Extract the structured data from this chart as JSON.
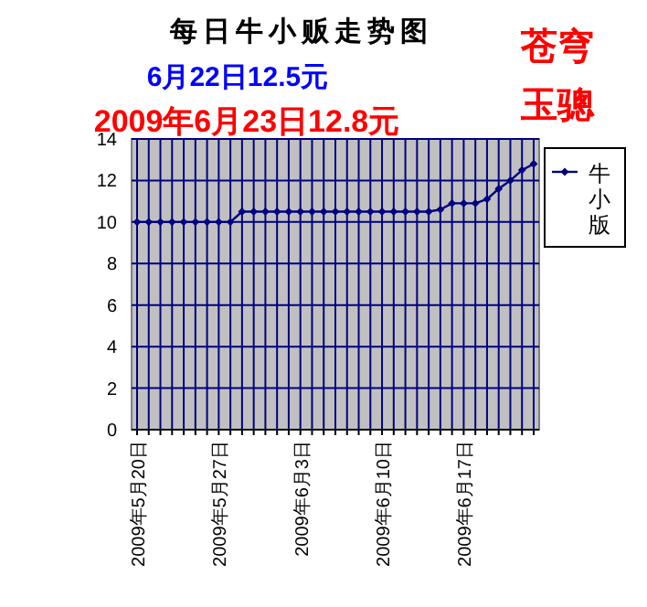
{
  "chart_data": {
    "type": "line",
    "title": "每日牛小贩走势图",
    "subtitle": "6月22日12.5元",
    "annotations": [
      "2009年6月23日12.8元",
      "苍穹",
      "玉骢"
    ],
    "categories": [
      "2009年5月20日",
      null,
      null,
      null,
      null,
      null,
      null,
      "2009年5月27日",
      null,
      null,
      null,
      null,
      null,
      null,
      "2009年6月3日",
      null,
      null,
      null,
      null,
      null,
      null,
      "2009年6月10日",
      null,
      null,
      null,
      null,
      null,
      null,
      "2009年6月17日",
      null,
      null,
      null,
      null,
      null,
      null
    ],
    "series": [
      {
        "name": "牛小版",
        "color": "#000080",
        "values": [
          10,
          10,
          10,
          10,
          10,
          10,
          10,
          10,
          10,
          10.5,
          10.5,
          10.5,
          10.5,
          10.5,
          10.5,
          10.5,
          10.5,
          10.5,
          10.5,
          10.5,
          10.5,
          10.5,
          10.5,
          10.5,
          10.5,
          10.5,
          10.6,
          10.9,
          10.9,
          10.9,
          11.1,
          11.6,
          12.0,
          12.5,
          12.8
        ]
      }
    ],
    "ylim": [
      0,
      14
    ],
    "yticks": [
      0,
      2,
      4,
      6,
      8,
      10,
      12,
      14
    ],
    "grid": true,
    "legend": "right",
    "marker": "diamond",
    "line_style": "solid"
  }
}
